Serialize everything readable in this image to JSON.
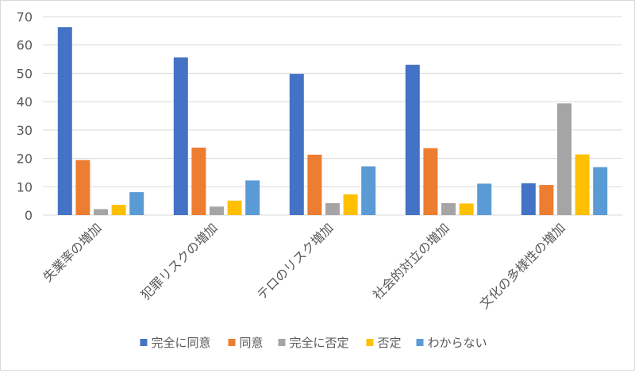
{
  "chart_data": {
    "type": "bar",
    "title": "",
    "xlabel": "",
    "ylabel": "",
    "ylim": [
      0,
      70
    ],
    "yticks": [
      0,
      10,
      20,
      30,
      40,
      50,
      60,
      70
    ],
    "grid": true,
    "legend_position": "bottom",
    "categories": [
      "失業率の増加",
      "犯罪リスクの増加",
      "テロのリスク増加",
      "社会的対立の増加",
      "文化の多様性の増加"
    ],
    "series": [
      {
        "name": "完全に同意",
        "color": "#4472C4",
        "values": [
          66.3,
          55.6,
          49.8,
          53.0,
          11.2
        ]
      },
      {
        "name": "同意",
        "color": "#ED7D31",
        "values": [
          19.4,
          23.8,
          21.3,
          23.6,
          10.6
        ]
      },
      {
        "name": "完全に否定",
        "color": "#A5A5A5",
        "values": [
          2.1,
          3.0,
          4.2,
          4.2,
          39.4
        ]
      },
      {
        "name": "否定",
        "color": "#FFC000",
        "values": [
          3.6,
          5.1,
          7.3,
          4.1,
          21.4
        ]
      },
      {
        "name": "わからない",
        "color": "#5B9BD5",
        "values": [
          8.1,
          12.2,
          17.2,
          11.1,
          16.9
        ]
      }
    ]
  }
}
